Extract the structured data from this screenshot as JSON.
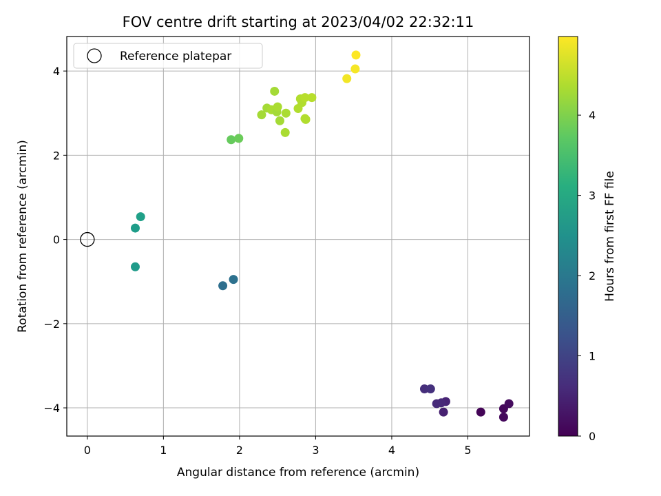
{
  "chart_data": {
    "type": "scatter",
    "title": "FOV centre drift starting at 2023/04/02 22:32:11",
    "xlabel": "Angular distance from reference (arcmin)",
    "ylabel": "Rotation from reference (arcmin)",
    "xlim": [
      -0.27,
      5.81
    ],
    "ylim": [
      -4.67,
      4.82
    ],
    "x_ticks": [
      0,
      1,
      2,
      3,
      4,
      5
    ],
    "y_ticks": [
      -4,
      -2,
      0,
      2,
      4
    ],
    "x_tick_labels": [
      "0",
      "1",
      "2",
      "3",
      "4",
      "5"
    ],
    "y_tick_labels": [
      "−4",
      "−2",
      "0",
      "2",
      "4"
    ],
    "grid": true,
    "legend": {
      "location": "upper-left",
      "entries": [
        "Reference platepar"
      ]
    },
    "reference_point": {
      "x": 0,
      "y": 0,
      "style": "hollow-circle"
    },
    "colorbar": {
      "label": "Hours from first FF file",
      "range": [
        0,
        4.98
      ],
      "ticks": [
        0,
        1,
        2,
        3,
        4
      ],
      "tick_labels": [
        "0",
        "1",
        "2",
        "3",
        "4"
      ],
      "colormap": "viridis"
    },
    "points": [
      {
        "x": 5.17,
        "y": -4.1,
        "c": 0.05
      },
      {
        "x": 5.47,
        "y": -4.02,
        "c": 0.1
      },
      {
        "x": 5.47,
        "y": -4.22,
        "c": 0.12
      },
      {
        "x": 5.54,
        "y": -3.9,
        "c": 0.15
      },
      {
        "x": 4.68,
        "y": -4.1,
        "c": 0.45
      },
      {
        "x": 4.71,
        "y": -3.85,
        "c": 0.5
      },
      {
        "x": 4.65,
        "y": -3.88,
        "c": 0.55
      },
      {
        "x": 4.59,
        "y": -3.9,
        "c": 0.6
      },
      {
        "x": 4.43,
        "y": -3.55,
        "c": 0.65
      },
      {
        "x": 4.51,
        "y": -3.55,
        "c": 0.7
      },
      {
        "x": 1.78,
        "y": -1.1,
        "c": 1.8
      },
      {
        "x": 1.92,
        "y": -0.95,
        "c": 1.85
      },
      {
        "x": 0.63,
        "y": -0.65,
        "c": 2.7
      },
      {
        "x": 0.63,
        "y": 0.27,
        "c": 2.75
      },
      {
        "x": 0.7,
        "y": 0.54,
        "c": 2.8
      },
      {
        "x": 1.89,
        "y": 2.37,
        "c": 3.8
      },
      {
        "x": 1.99,
        "y": 2.4,
        "c": 3.85
      },
      {
        "x": 2.29,
        "y": 2.96,
        "c": 4.3
      },
      {
        "x": 2.36,
        "y": 3.12,
        "c": 4.3
      },
      {
        "x": 2.42,
        "y": 3.08,
        "c": 4.35
      },
      {
        "x": 2.46,
        "y": 3.52,
        "c": 4.3
      },
      {
        "x": 2.49,
        "y": 3.03,
        "c": 4.3
      },
      {
        "x": 2.5,
        "y": 3.15,
        "c": 4.35
      },
      {
        "x": 2.53,
        "y": 2.82,
        "c": 4.3
      },
      {
        "x": 2.6,
        "y": 2.54,
        "c": 4.35
      },
      {
        "x": 2.61,
        "y": 3.0,
        "c": 4.35
      },
      {
        "x": 2.77,
        "y": 3.11,
        "c": 4.4
      },
      {
        "x": 2.8,
        "y": 3.34,
        "c": 4.4
      },
      {
        "x": 2.82,
        "y": 3.25,
        "c": 4.4
      },
      {
        "x": 2.86,
        "y": 3.37,
        "c": 4.45
      },
      {
        "x": 2.86,
        "y": 2.87,
        "c": 4.4
      },
      {
        "x": 2.87,
        "y": 2.85,
        "c": 4.4
      },
      {
        "x": 2.95,
        "y": 3.37,
        "c": 4.45
      },
      {
        "x": 3.41,
        "y": 3.82,
        "c": 4.9
      },
      {
        "x": 3.52,
        "y": 4.05,
        "c": 4.92
      },
      {
        "x": 3.53,
        "y": 4.38,
        "c": 4.98
      }
    ]
  }
}
